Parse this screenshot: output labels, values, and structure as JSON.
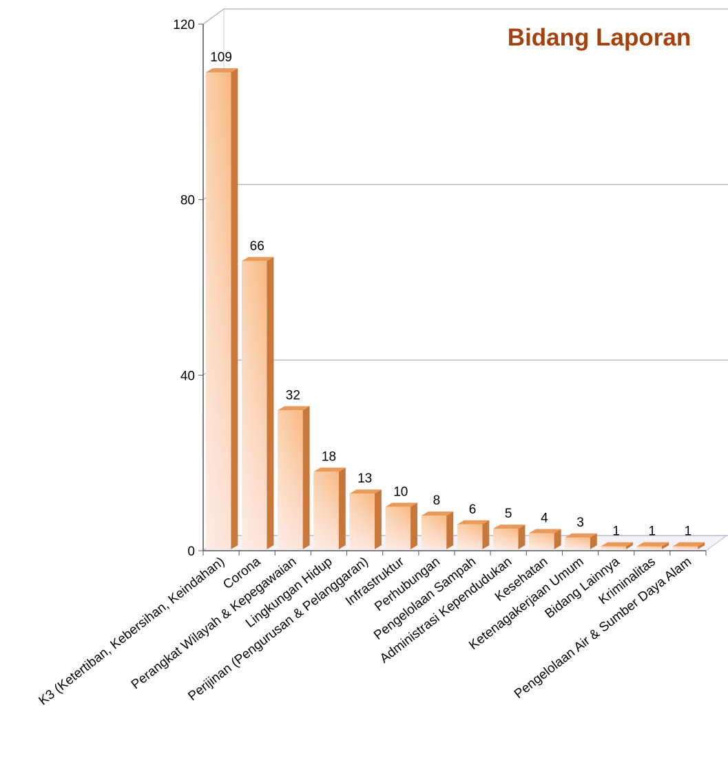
{
  "chart_data": {
    "type": "bar3d",
    "title": "Bidang Laporan",
    "categories": [
      "K3 (Ketertiban, Kebersihan, Keindahan)",
      "Corona",
      "Perangkat Wilayah & Kepegawaian",
      "Lingkungan Hidup",
      "Perijinan (Pengurusan & Pelanggaran)",
      "Infrastruktur",
      "Perhubungan",
      "Pengelolaan Sampah",
      "Administrasi Kependudukan",
      "Kesehatan",
      "Ketenagakerjaan Umum",
      "Bidang Lainnya",
      "Kriminalitas",
      "Pengelolaan Air & Sumber Daya Alam"
    ],
    "values": [
      109,
      66,
      32,
      18,
      13,
      10,
      8,
      6,
      5,
      4,
      3,
      1,
      1,
      1
    ],
    "color": "#f6b27a",
    "ylim": [
      0,
      120
    ],
    "yticks": [
      0,
      40,
      80,
      120
    ],
    "grid": true
  }
}
